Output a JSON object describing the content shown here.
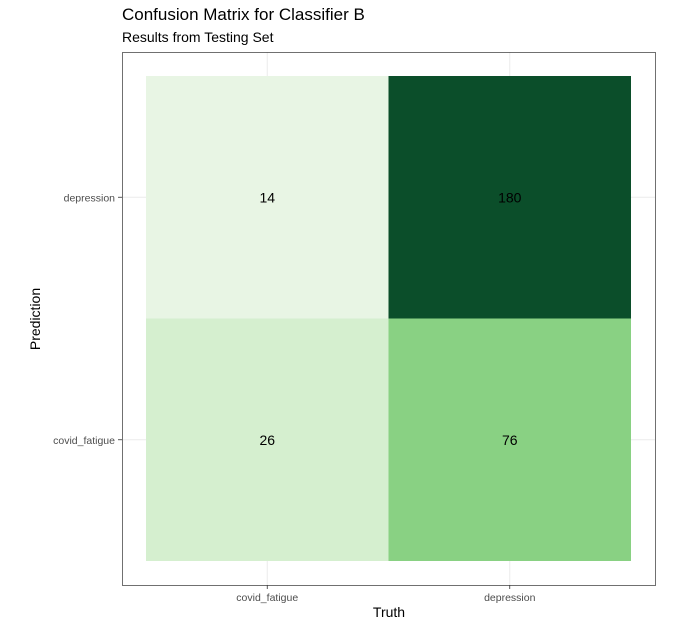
{
  "chart_data": {
    "type": "heatmap",
    "title": "Confusion Matrix for Classifier B",
    "subtitle": "Results from Testing Set",
    "xlabel": "Truth",
    "ylabel": "Prediction",
    "x_categories": [
      "covid_fatigue",
      "depression"
    ],
    "y_categories": [
      "covid_fatigue",
      "depression"
    ],
    "cells": [
      {
        "truth": "covid_fatigue",
        "prediction": "depression",
        "value": 14,
        "color": "#e8f5e4"
      },
      {
        "truth": "depression",
        "prediction": "depression",
        "value": 180,
        "color": "#0b4e2a"
      },
      {
        "truth": "covid_fatigue",
        "prediction": "covid_fatigue",
        "value": 26,
        "color": "#d5efcf"
      },
      {
        "truth": "depression",
        "prediction": "covid_fatigue",
        "value": 76,
        "color": "#89d183"
      }
    ],
    "grid": true,
    "legend": "none"
  }
}
